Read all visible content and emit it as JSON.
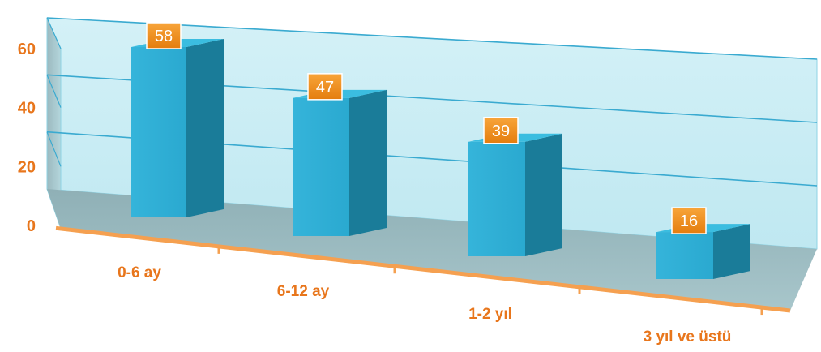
{
  "chart_data": {
    "type": "bar",
    "title": "",
    "xlabel": "",
    "ylabel": "",
    "categories": [
      "0-6 ay",
      "6-12 ay",
      "1-2 yıl",
      "3 yıl ve üstü"
    ],
    "values": [
      58,
      47,
      39,
      16
    ],
    "ylim": [
      0,
      60
    ],
    "yticks": [
      0,
      20,
      40,
      60
    ],
    "ytick_labels": [
      "0",
      "20",
      "40",
      "60"
    ],
    "data_labels": [
      "58",
      "47",
      "39",
      "16"
    ],
    "grid": true,
    "legend": "none",
    "style": "3d-perspective",
    "colors": {
      "bar_front": "#2aa9d0",
      "bar_side": "#1a7c99",
      "bar_top": "#3bbde0",
      "label_box": "#f2921c",
      "axis_text": "#e8761c",
      "axis_line": "#f5a050",
      "back_wall": "#bfe8f1",
      "side_wall": "#9bb9bf",
      "floor": "#8fb0b6",
      "grid_line": "#3aaad0"
    }
  }
}
